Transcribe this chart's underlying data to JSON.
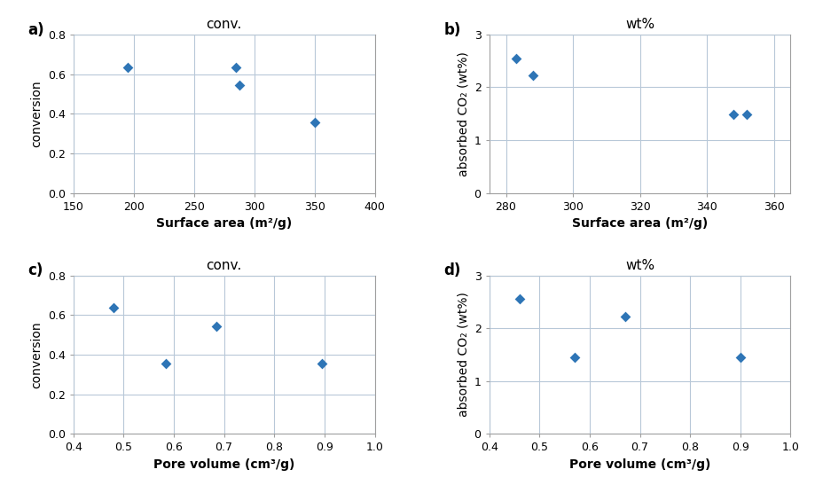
{
  "panel_a": {
    "title": "conv.",
    "label": "a)",
    "x": [
      195,
      285,
      288,
      350
    ],
    "y": [
      0.635,
      0.635,
      0.545,
      0.355
    ],
    "xlabel": "Surface area (m²/g)",
    "ylabel": "conversion",
    "xlim": [
      150,
      400
    ],
    "ylim": [
      0,
      0.8
    ],
    "xticks": [
      150,
      200,
      250,
      300,
      350,
      400
    ],
    "yticks": [
      0,
      0.2,
      0.4,
      0.6,
      0.8
    ]
  },
  "panel_b": {
    "title": "wt%",
    "label": "b)",
    "x": [
      283,
      288,
      348,
      352
    ],
    "y": [
      2.55,
      2.22,
      1.48,
      1.48
    ],
    "xlabel": "Surface area (m²/g)",
    "ylabel": "absorbed CO₂ (wt%)",
    "xlim": [
      275,
      365
    ],
    "ylim": [
      0,
      3
    ],
    "xticks": [
      280,
      300,
      320,
      340,
      360
    ],
    "yticks": [
      0,
      1,
      2,
      3
    ]
  },
  "panel_c": {
    "title": "conv.",
    "label": "c)",
    "x": [
      0.48,
      0.585,
      0.685,
      0.895
    ],
    "y": [
      0.635,
      0.355,
      0.545,
      0.355
    ],
    "xlabel": "Pore volume (cm³/g)",
    "ylabel": "conversion",
    "xlim": [
      0.4,
      1.0
    ],
    "ylim": [
      0,
      0.8
    ],
    "xticks": [
      0.4,
      0.5,
      0.6,
      0.7,
      0.8,
      0.9,
      1.0
    ],
    "yticks": [
      0,
      0.2,
      0.4,
      0.6,
      0.8
    ]
  },
  "panel_d": {
    "title": "wt%",
    "label": "d)",
    "x": [
      0.46,
      0.57,
      0.67,
      0.9
    ],
    "y": [
      2.55,
      1.45,
      2.22,
      1.45
    ],
    "xlabel": "Pore volume (cm³/g)",
    "ylabel": "absorbed CO₂ (wt%)",
    "xlim": [
      0.4,
      1.0
    ],
    "ylim": [
      0,
      3
    ],
    "xticks": [
      0.4,
      0.5,
      0.6,
      0.7,
      0.8,
      0.9,
      1.0
    ],
    "yticks": [
      0,
      1,
      2,
      3
    ]
  },
  "marker_color": "#2E75B6",
  "marker": "D",
  "marker_size": 6,
  "grid_color": "#B8C8D8",
  "title_fontsize": 11,
  "label_fontsize": 12,
  "tick_fontsize": 9,
  "axis_label_fontsize": 10,
  "bg_color": "#FFFFFF",
  "spine_color": "#A0A0A0"
}
